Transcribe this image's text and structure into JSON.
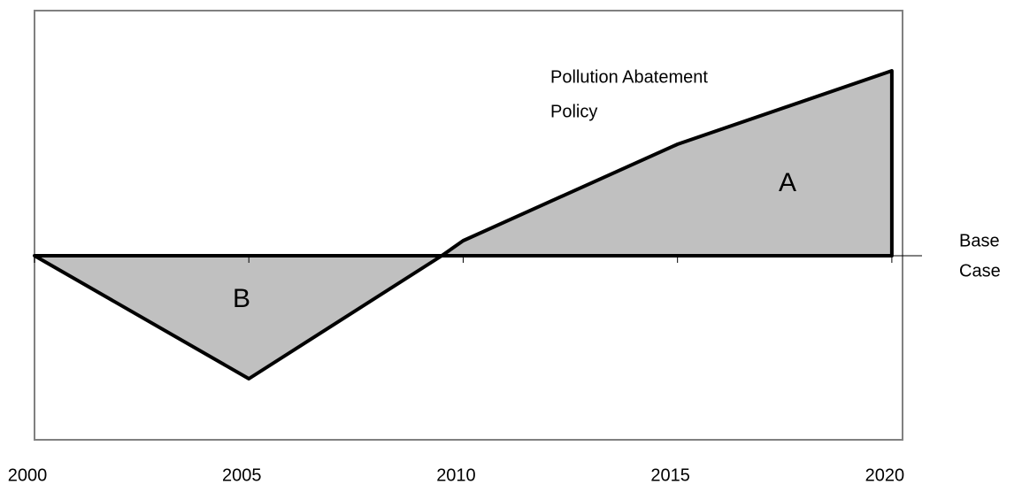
{
  "chart_data": {
    "type": "area",
    "xlim": [
      2000,
      2020.25
    ],
    "ylim": [
      -20.8,
      27.7
    ],
    "xticks": [
      2000,
      2005,
      2010,
      2015,
      2020
    ],
    "fill_color": "#c0c0c0",
    "series": [
      {
        "name": "Pollution Abatement Policy",
        "name_lines": [
          "Pollution Abatement",
          "Policy"
        ],
        "color": "#000000",
        "x": [
          2000,
          2005,
          2009.5,
          2010,
          2015,
          2020
        ],
        "values": [
          0,
          -13.9,
          0,
          1.7,
          12.6,
          20.9
        ]
      },
      {
        "name": "Base Case",
        "name_lines": [
          "Base",
          "Case"
        ],
        "color": "#000000",
        "x": [
          2000,
          2020
        ],
        "values": [
          0,
          0
        ]
      }
    ],
    "annotations": [
      "A",
      "B"
    ]
  }
}
